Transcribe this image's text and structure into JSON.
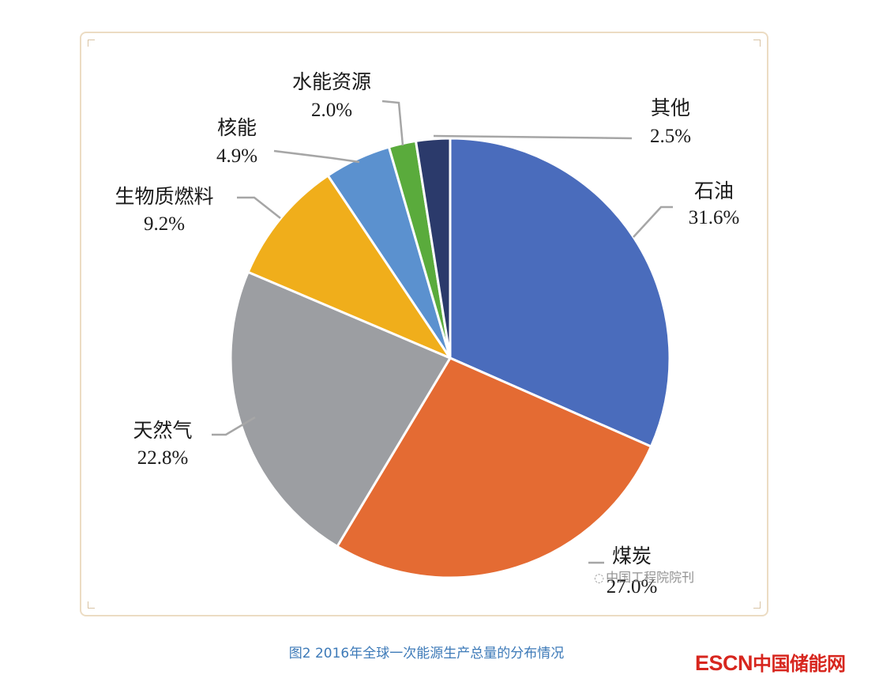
{
  "chart_data": {
    "type": "pie",
    "start_angle_deg": 0,
    "direction": "clockwise",
    "slices": [
      {
        "label": "石油",
        "value": 31.6,
        "value_text": "31.6%",
        "color": "#4a6cbc"
      },
      {
        "label": "煤炭",
        "value": 27.0,
        "value_text": "27.0%",
        "color": "#e46b33"
      },
      {
        "label": "天然气",
        "value": 22.8,
        "value_text": "22.8%",
        "color": "#9c9ea2"
      },
      {
        "label": "生物质燃料",
        "value": 9.2,
        "value_text": "9.2%",
        "color": "#f0ae1b"
      },
      {
        "label": "核能",
        "value": 4.9,
        "value_text": "4.9%",
        "color": "#5b91cf"
      },
      {
        "label": "水能资源",
        "value": 2.0,
        "value_text": "2.0%",
        "color": "#5aab3c"
      },
      {
        "label": "其他",
        "value": 2.5,
        "value_text": "2.5%",
        "color": "#2b3a6b"
      }
    ]
  },
  "caption": "图2 2016年全球一次能源生产总量的分布情况",
  "watermark": {
    "text": "中国工程院院刊",
    "icon": "wechat-icon"
  },
  "logo": {
    "latin": "ESCN",
    "cn": "中国储能网"
  }
}
